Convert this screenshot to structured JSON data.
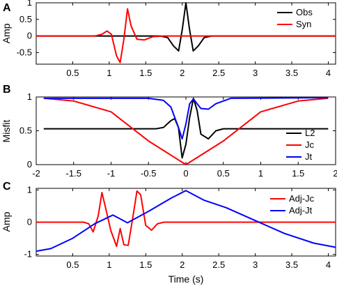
{
  "figure": {
    "panels": [
      "A",
      "B",
      "C"
    ]
  },
  "chart_data": [
    {
      "panel": "A",
      "type": "line",
      "xlabel": "",
      "ylabel": "Amp",
      "xlim": [
        0,
        4.1
      ],
      "ylim": [
        -0.85,
        1.0
      ],
      "xticks": [
        0.5,
        1,
        1.5,
        2,
        2.5,
        3,
        3.5,
        4
      ],
      "xtick_labels": [
        "0.5",
        "1",
        "1.5",
        "2",
        "2.5",
        "3",
        "3.5",
        "4"
      ],
      "yticks": [
        1,
        0.5,
        0,
        -0.5
      ],
      "ytick_labels": [
        "1",
        "0.5",
        "0",
        "-0.5"
      ],
      "legend_position": "top-right",
      "series": [
        {
          "name": "Obs",
          "color": "#000000",
          "x": [
            0,
            1.7,
            1.8,
            1.88,
            1.95,
            2.0,
            2.05,
            2.1,
            2.15,
            2.22,
            2.3,
            2.4,
            4.1
          ],
          "y": [
            0,
            0,
            -0.05,
            -0.3,
            -0.45,
            0.2,
            1.0,
            0.2,
            -0.45,
            -0.3,
            -0.05,
            0,
            0
          ]
        },
        {
          "name": "Syn",
          "color": "#ff0000",
          "x": [
            0,
            0.8,
            0.9,
            0.97,
            1.03,
            1.1,
            1.15,
            1.2,
            1.25,
            1.3,
            1.38,
            1.48,
            1.6,
            1.75,
            4.1
          ],
          "y": [
            0,
            0,
            0.05,
            0.15,
            0.05,
            -0.6,
            -0.8,
            -0.1,
            0.82,
            0.3,
            -0.1,
            -0.12,
            -0.02,
            0,
            0
          ]
        }
      ]
    },
    {
      "panel": "B",
      "type": "line",
      "xlabel": "",
      "ylabel": "Misfit",
      "xlim": [
        -2,
        2
      ],
      "ylim": [
        0,
        1.0
      ],
      "xticks": [
        -2,
        -1.5,
        -1,
        -0.5,
        0,
        0.5,
        1,
        1.5,
        2
      ],
      "xtick_labels": [
        "-2",
        "-1.5",
        "-1",
        "-0.5",
        "0",
        "0.5",
        "1",
        "1.5",
        "2"
      ],
      "yticks": [
        1,
        0.5,
        0
      ],
      "ytick_labels": [
        "1",
        "0.5",
        "0"
      ],
      "legend_position": "bottom-right",
      "series": [
        {
          "name": "L2",
          "color": "#000000",
          "x": [
            -1.9,
            -0.4,
            -0.3,
            -0.2,
            -0.15,
            -0.1,
            -0.05,
            0,
            0.05,
            0.1,
            0.15,
            0.2,
            0.3,
            0.4,
            0.5,
            1.9
          ],
          "y": [
            0.53,
            0.53,
            0.55,
            0.65,
            0.68,
            0.55,
            0.1,
            0.3,
            0.7,
            0.98,
            0.8,
            0.45,
            0.38,
            0.5,
            0.53,
            0.53
          ]
        },
        {
          "name": "Jc",
          "color": "#ff0000",
          "x": [
            -1.9,
            -1.5,
            -1.0,
            -0.5,
            0.0,
            0.5,
            1.0,
            1.5,
            1.9
          ],
          "y": [
            0.98,
            0.94,
            0.78,
            0.35,
            0.0,
            0.35,
            0.78,
            0.94,
            0.98
          ]
        },
        {
          "name": "Jt",
          "color": "#0000ff",
          "x": [
            -1.9,
            -0.5,
            -0.3,
            -0.2,
            -0.1,
            -0.05,
            0.0,
            0.05,
            0.1,
            0.15,
            0.2,
            0.3,
            0.4,
            0.6,
            1.9
          ],
          "y": [
            0.98,
            0.98,
            0.95,
            0.85,
            0.55,
            0.38,
            0.6,
            0.9,
            0.97,
            0.9,
            0.83,
            0.82,
            0.9,
            0.98,
            0.99
          ]
        }
      ]
    },
    {
      "panel": "C",
      "type": "line",
      "xlabel": "Time (s)",
      "ylabel": "Amp",
      "xlim": [
        0,
        4.1
      ],
      "ylim": [
        -1.05,
        1.05
      ],
      "xticks": [
        0.5,
        1,
        1.5,
        2,
        2.5,
        3,
        3.5,
        4
      ],
      "xtick_labels": [
        "0.5",
        "1",
        "1.5",
        "2",
        "2.5",
        "3",
        "3.5",
        "4"
      ],
      "yticks": [
        1,
        0,
        -1
      ],
      "ytick_labels": [
        "1",
        "0",
        "-1"
      ],
      "legend_position": "top-right",
      "series": [
        {
          "name": "Adj-Jc",
          "color": "#ff0000",
          "x": [
            0,
            0.65,
            0.72,
            0.78,
            0.85,
            0.9,
            0.95,
            1.02,
            1.1,
            1.15,
            1.2,
            1.26,
            1.32,
            1.38,
            1.43,
            1.5,
            1.58,
            1.66,
            1.75,
            4.1
          ],
          "y": [
            0,
            0,
            -0.05,
            -0.3,
            0.2,
            0.92,
            0.45,
            -0.25,
            -0.75,
            -0.2,
            -0.7,
            -0.72,
            0.1,
            0.97,
            0.85,
            -0.1,
            -0.25,
            -0.05,
            0,
            0
          ]
        },
        {
          "name": "Adj-Jt",
          "color": "#0000ff",
          "x": [
            0,
            0.2,
            0.5,
            0.8,
            1.05,
            1.25,
            1.55,
            1.85,
            2.05,
            2.3,
            2.6,
            3.0,
            3.4,
            3.8,
            4.1
          ],
          "y": [
            -0.9,
            -0.82,
            -0.5,
            -0.05,
            0.22,
            -0.02,
            0.35,
            0.75,
            0.98,
            0.68,
            0.45,
            0.05,
            -0.35,
            -0.65,
            -0.78
          ]
        }
      ]
    }
  ]
}
